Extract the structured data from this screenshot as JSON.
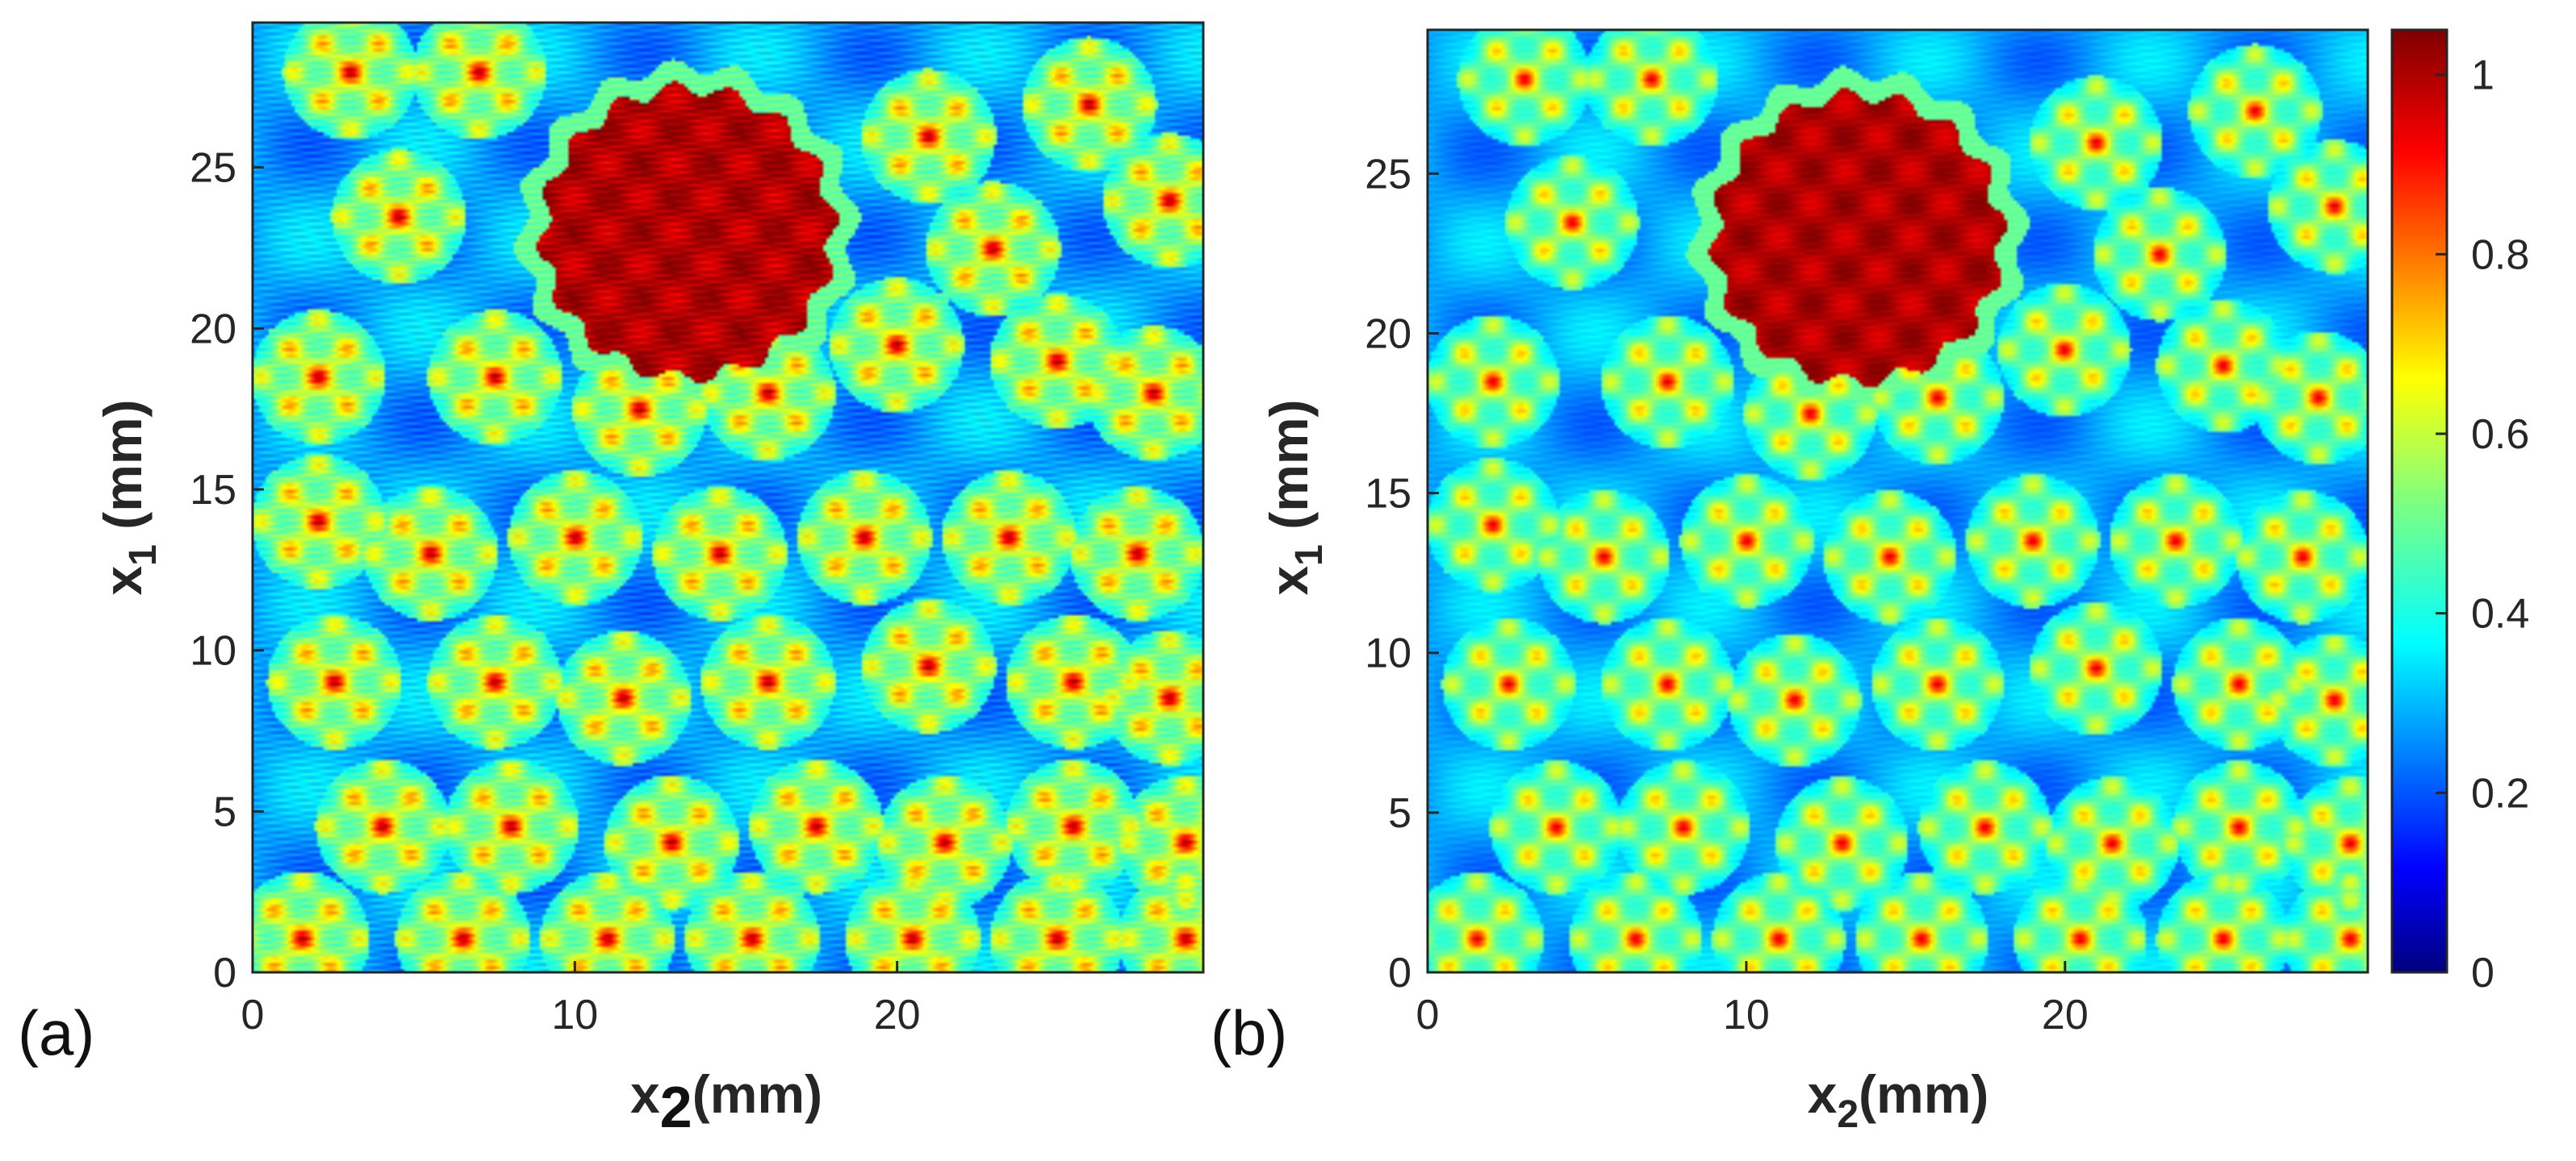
{
  "chart_data": [
    {
      "type": "heatmap",
      "panel_label": "(a)",
      "xlabel": {
        "main": "x",
        "sub": "2",
        "tail": "(mm)"
      },
      "ylabel": {
        "main": "x",
        "sub": "1",
        "tail": " (mm)"
      },
      "xlim": [
        0,
        29.5
      ],
      "ylim": [
        0,
        29.5
      ],
      "xticks": [
        0,
        10,
        20
      ],
      "yticks": [
        0,
        5,
        10,
        15,
        20,
        25
      ],
      "colormap": "jet",
      "clim": [
        0,
        1.05
      ],
      "field": {
        "background": 0.3,
        "large_disk": {
          "x2": 13.5,
          "x1": 23,
          "radius": 4.5,
          "value": 1.0
        },
        "cluster_centers": [
          [
            3,
            28
          ],
          [
            7,
            28
          ],
          [
            21,
            26
          ],
          [
            26,
            27
          ],
          [
            28.5,
            24
          ],
          [
            4.5,
            23.5
          ],
          [
            23,
            22.5
          ],
          [
            2,
            18.5
          ],
          [
            7.5,
            18.5
          ],
          [
            12,
            17.5
          ],
          [
            16,
            18
          ],
          [
            20,
            19.5
          ],
          [
            25,
            19
          ],
          [
            28,
            18
          ],
          [
            2,
            14
          ],
          [
            5.5,
            13
          ],
          [
            10,
            13.5
          ],
          [
            14.5,
            13
          ],
          [
            19,
            13.5
          ],
          [
            23.5,
            13.5
          ],
          [
            27.5,
            13
          ],
          [
            2.5,
            9
          ],
          [
            7.5,
            9
          ],
          [
            11.5,
            8.5
          ],
          [
            16,
            9
          ],
          [
            21,
            9.5
          ],
          [
            25.5,
            9
          ],
          [
            28.5,
            8.5
          ],
          [
            4,
            4.5
          ],
          [
            8,
            4.5
          ],
          [
            13,
            4
          ],
          [
            17.5,
            4.5
          ],
          [
            21.5,
            4
          ],
          [
            25.5,
            4.5
          ],
          [
            29,
            4
          ],
          [
            1.5,
            1
          ],
          [
            6.5,
            1
          ],
          [
            11,
            1
          ],
          [
            15.5,
            1
          ],
          [
            20.5,
            1
          ],
          [
            25,
            1
          ],
          [
            29,
            1
          ]
        ],
        "cluster_peak": 1.0,
        "cluster_halo": 0.55,
        "cluster_radius": 2.1
      }
    },
    {
      "type": "heatmap",
      "panel_label": "(b)",
      "xlabel": {
        "main": "x",
        "sub": "2",
        "tail": "(mm)"
      },
      "ylabel": {
        "main": "x",
        "sub": "1",
        "tail": " (mm)"
      },
      "xlim": [
        0,
        29.5
      ],
      "ylim": [
        0,
        29.5
      ],
      "xticks": [
        0,
        10,
        20
      ],
      "yticks": [
        0,
        5,
        10,
        15,
        20,
        25
      ],
      "colormap": "jet",
      "clim": [
        0,
        1.05
      ],
      "colorbar_ticks": [
        0,
        0.2,
        0.4,
        0.6,
        0.8,
        1
      ],
      "field": {
        "background": 0.3,
        "large_disk": {
          "x2": 13.5,
          "x1": 23,
          "radius": 4.5,
          "value": 1.0
        },
        "cluster_centers": [
          [
            3,
            28
          ],
          [
            7,
            28
          ],
          [
            21,
            26
          ],
          [
            26,
            27
          ],
          [
            28.5,
            24
          ],
          [
            4.5,
            23.5
          ],
          [
            23,
            22.5
          ],
          [
            2,
            18.5
          ],
          [
            7.5,
            18.5
          ],
          [
            12,
            17.5
          ],
          [
            16,
            18
          ],
          [
            20,
            19.5
          ],
          [
            25,
            19
          ],
          [
            28,
            18
          ],
          [
            2,
            14
          ],
          [
            5.5,
            13
          ],
          [
            10,
            13.5
          ],
          [
            14.5,
            13
          ],
          [
            19,
            13.5
          ],
          [
            23.5,
            13.5
          ],
          [
            27.5,
            13
          ],
          [
            2.5,
            9
          ],
          [
            7.5,
            9
          ],
          [
            11.5,
            8.5
          ],
          [
            16,
            9
          ],
          [
            21,
            9.5
          ],
          [
            25.5,
            9
          ],
          [
            28.5,
            8.5
          ],
          [
            4,
            4.5
          ],
          [
            8,
            4.5
          ],
          [
            13,
            4
          ],
          [
            17.5,
            4.5
          ],
          [
            21.5,
            4
          ],
          [
            25.5,
            4.5
          ],
          [
            29,
            4
          ],
          [
            1.5,
            1
          ],
          [
            6.5,
            1
          ],
          [
            11,
            1
          ],
          [
            15.5,
            1
          ],
          [
            20.5,
            1
          ],
          [
            25,
            1
          ],
          [
            29,
            1
          ]
        ],
        "cluster_peak": 0.95,
        "cluster_halo": 0.5,
        "cluster_radius": 2.1
      }
    }
  ]
}
